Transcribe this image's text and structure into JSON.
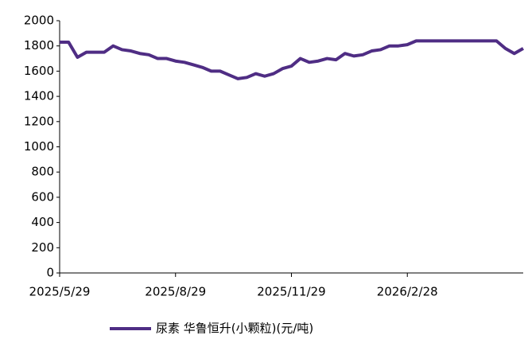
{
  "chart_data": {
    "type": "line",
    "categories": [
      "2025/5/29",
      null,
      null,
      null,
      null,
      null,
      null,
      null,
      null,
      null,
      null,
      null,
      null,
      "2025/8/29",
      null,
      null,
      null,
      null,
      null,
      null,
      null,
      null,
      null,
      null,
      null,
      null,
      "2025/11/29",
      null,
      null,
      null,
      null,
      null,
      null,
      null,
      null,
      null,
      null,
      null,
      null,
      "2026/2/28",
      null,
      null,
      null,
      null,
      null,
      null,
      null,
      null,
      null,
      null,
      null,
      null,
      null
    ],
    "series": [
      {
        "name": "尿素 华鲁恒升(小颗粒)(元/吨)",
        "color": "#4f2d84",
        "values": [
          1830,
          1830,
          1710,
          1750,
          1750,
          1750,
          1800,
          1770,
          1760,
          1740,
          1730,
          1700,
          1700,
          1680,
          1670,
          1650,
          1630,
          1600,
          1600,
          1570,
          1540,
          1550,
          1580,
          1560,
          1580,
          1620,
          1640,
          1700,
          1670,
          1680,
          1700,
          1690,
          1740,
          1720,
          1730,
          1760,
          1770,
          1800,
          1800,
          1810,
          1840,
          1840,
          1840,
          1840,
          1840,
          1840,
          1840,
          1840,
          1840,
          1840,
          1780,
          1740,
          1780
        ]
      }
    ],
    "ylim": [
      0,
      2000
    ],
    "yticks": [
      0,
      200,
      400,
      600,
      800,
      1000,
      1200,
      1400,
      1600,
      1800,
      2000
    ],
    "legend": "bottom"
  }
}
